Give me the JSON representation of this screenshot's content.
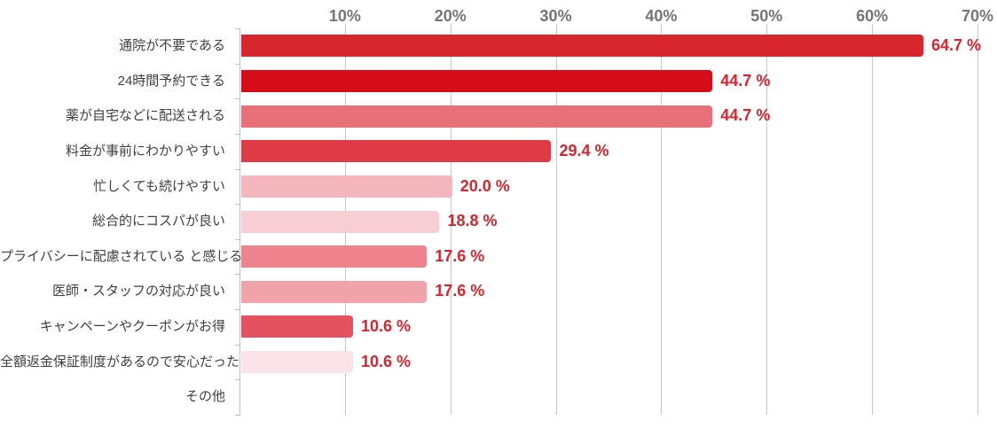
{
  "chart_data": {
    "type": "bar",
    "orientation": "horizontal",
    "title": "",
    "xlabel": "",
    "ylabel": "",
    "legend": false,
    "grid": true,
    "categories": [
      "通院が不要である",
      "24時間予約できる",
      "薬が自宅などに配送される",
      "料金が事前にわかりやすい",
      "忙しくても続けやすい",
      "総合的にコスパが良い",
      "プライバシーに配慮されている と感じる",
      "医師・スタッフの対応が良い",
      "キャンペーンやクーポンがお得",
      "全額返金保証制度があるので安心だった",
      "その他"
    ],
    "values": [
      64.7,
      44.7,
      44.7,
      29.4,
      20.0,
      18.8,
      17.6,
      17.6,
      10.6,
      10.6,
      0
    ],
    "value_labels": [
      "64.7 %",
      "44.7 %",
      "44.7 %",
      "29.4 %",
      "20.0 %",
      "18.8 %",
      "17.6 %",
      "17.6 %",
      "10.6 %",
      "10.6 %",
      ""
    ],
    "bar_colors": [
      "#d8262f",
      "#d50c19",
      "#e87078",
      "#df3b46",
      "#f3b6bd",
      "#f6ced4",
      "#ec838d",
      "#f0a3ab",
      "#e4525f",
      "#fbe4e8",
      "#ffffff"
    ],
    "x_axis": {
      "position": "top",
      "min": 0,
      "max": 70,
      "ticks": [
        {
          "value": 10,
          "label": "10%"
        },
        {
          "value": 20,
          "label": "20%"
        },
        {
          "value": 30,
          "label": "30%"
        },
        {
          "value": 40,
          "label": "40%"
        },
        {
          "value": 50,
          "label": "50%"
        },
        {
          "value": 60,
          "label": "60%"
        },
        {
          "value": 70,
          "label": "70%"
        }
      ]
    },
    "colors": {
      "value_label": "#d7242e",
      "tick_label": "#757575",
      "category_label": "#3f3f3f",
      "gridline": "#c6c6c6",
      "axis_line": "#b9c3d1",
      "background": "#ffffff"
    }
  }
}
